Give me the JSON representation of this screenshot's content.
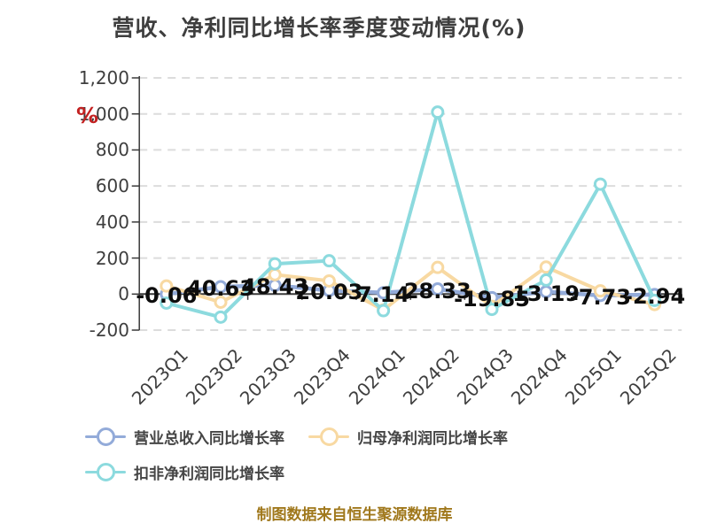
{
  "title": "营收、净利同比增长率季度变动情况(%)",
  "y_axis_unit": "%",
  "footer": "制图数据来自恒生聚源数据库",
  "colors": {
    "revenue_series": "#93abd9",
    "net_profit_series": "#f8d9a2",
    "deducted_profit_series": "#8cdade",
    "title_text": "#3e3e3e",
    "axis_text": "#3e3e3e",
    "data_label_text": "#0d0d0d",
    "footer_text": "#a0781c",
    "unit_red": "#c32222",
    "gridline": "#dcdcdc",
    "axis_line": "#3a3a3a"
  },
  "chart_data": {
    "type": "line",
    "title": "营收、净利同比增长率季度变动情况(%)",
    "categories": [
      "2023Q1",
      "2023Q2",
      "2023Q3",
      "2023Q4",
      "2024Q1",
      "2024Q2",
      "2024Q3",
      "2024Q4",
      "2025Q1",
      "2025Q2"
    ],
    "ylim": [
      -200,
      1200
    ],
    "yticks": [
      -200,
      0,
      200,
      400,
      600,
      800,
      1000,
      1200
    ],
    "ytick_labels": [
      "-200",
      "0",
      "200",
      "400",
      "600",
      "800",
      "1,000",
      "1,200"
    ],
    "grid": "horizontal-dashed",
    "legend_position": "bottom-left",
    "unit": "%",
    "series": [
      {
        "name": "营业总收入同比增长率",
        "color": "#93abd9",
        "marker": "hollow-circle",
        "values": [
          -0.06,
          40.63,
          48.43,
          20.03,
          7.14,
          28.33,
          -19.85,
          13.19,
          -7.73,
          -2.94
        ],
        "data_labels": [
          "-0.06",
          "40.63",
          "48.43",
          "20.03",
          "7.14",
          "28.33",
          "-19.85",
          "13.19",
          "-7.73",
          "-2.94"
        ]
      },
      {
        "name": "归母净利润同比增长率",
        "color": "#f8d9a2",
        "marker": "hollow-circle",
        "values": [
          45,
          -45,
          108,
          73,
          -88,
          148,
          -68,
          150,
          18,
          -58
        ]
      },
      {
        "name": "扣非净利润同比增长率",
        "color": "#8cdade",
        "marker": "hollow-circle",
        "values": [
          -50,
          -128,
          168,
          185,
          -92,
          1010,
          -85,
          78,
          610,
          -35
        ]
      }
    ]
  }
}
